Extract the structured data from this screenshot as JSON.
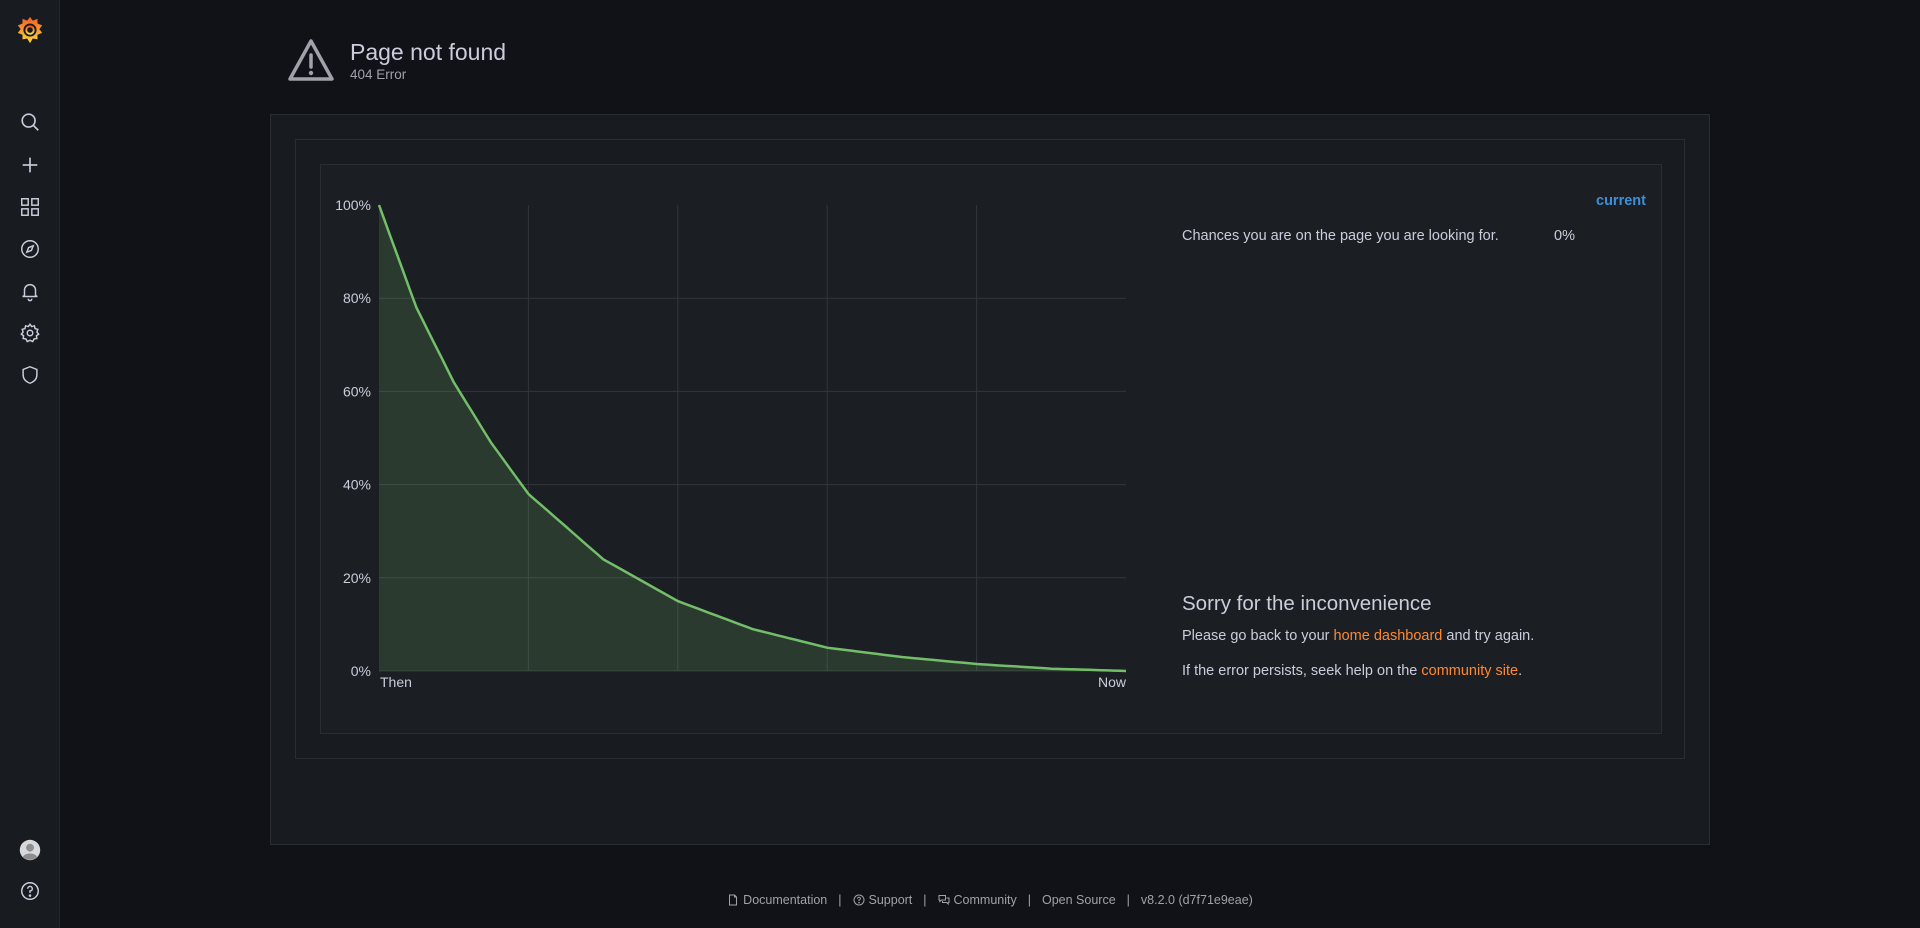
{
  "header": {
    "title": "Page not found",
    "subtitle": "404 Error"
  },
  "sidebar": {
    "items": [
      {
        "icon": "grafana-logo-icon"
      },
      {
        "icon": "search-icon"
      },
      {
        "icon": "plus-icon"
      },
      {
        "icon": "dashboards-icon"
      },
      {
        "icon": "explore-icon"
      },
      {
        "icon": "alerting-bell-icon"
      },
      {
        "icon": "gear-icon"
      },
      {
        "icon": "shield-icon"
      },
      {
        "icon": "user-avatar-icon"
      },
      {
        "icon": "help-icon"
      }
    ]
  },
  "chart_data": {
    "type": "area",
    "x_labels": [
      "Then",
      "Now"
    ],
    "y_ticks": [
      "0%",
      "20%",
      "40%",
      "60%",
      "80%",
      "100%"
    ],
    "ylim": [
      0,
      100
    ],
    "series": [
      {
        "name": "Chances you are on the page you are looking for.",
        "x": [
          0,
          0.05,
          0.1,
          0.15,
          0.2,
          0.3,
          0.4,
          0.5,
          0.6,
          0.7,
          0.8,
          0.9,
          1.0
        ],
        "values": [
          100,
          78,
          62,
          49,
          38,
          24,
          15,
          9,
          5,
          3,
          1.5,
          0.5,
          0
        ],
        "color": "#73bf69"
      }
    ],
    "grid": true
  },
  "legend": {
    "header": "current",
    "series_label": "Chances you are on the page you are looking for.",
    "series_value": "0%"
  },
  "message": {
    "heading": "Sorry for the inconvenience",
    "line1_before": "Please go back to your ",
    "line1_link": "home dashboard",
    "line1_after": " and try again.",
    "line2_before": "If the error persists, seek help on the ",
    "line2_link": "community site",
    "line2_after": "."
  },
  "footer": {
    "documentation": "Documentation",
    "support": "Support",
    "community": "Community",
    "open_source": "Open Source",
    "version": "v8.2.0 (d7f71e9eae)",
    "separator": "|"
  },
  "colors": {
    "background": "#111217",
    "panel": "#181b1f",
    "link": "#ff8833",
    "legend_header": "#3d8fd9",
    "series": "#73bf69"
  }
}
